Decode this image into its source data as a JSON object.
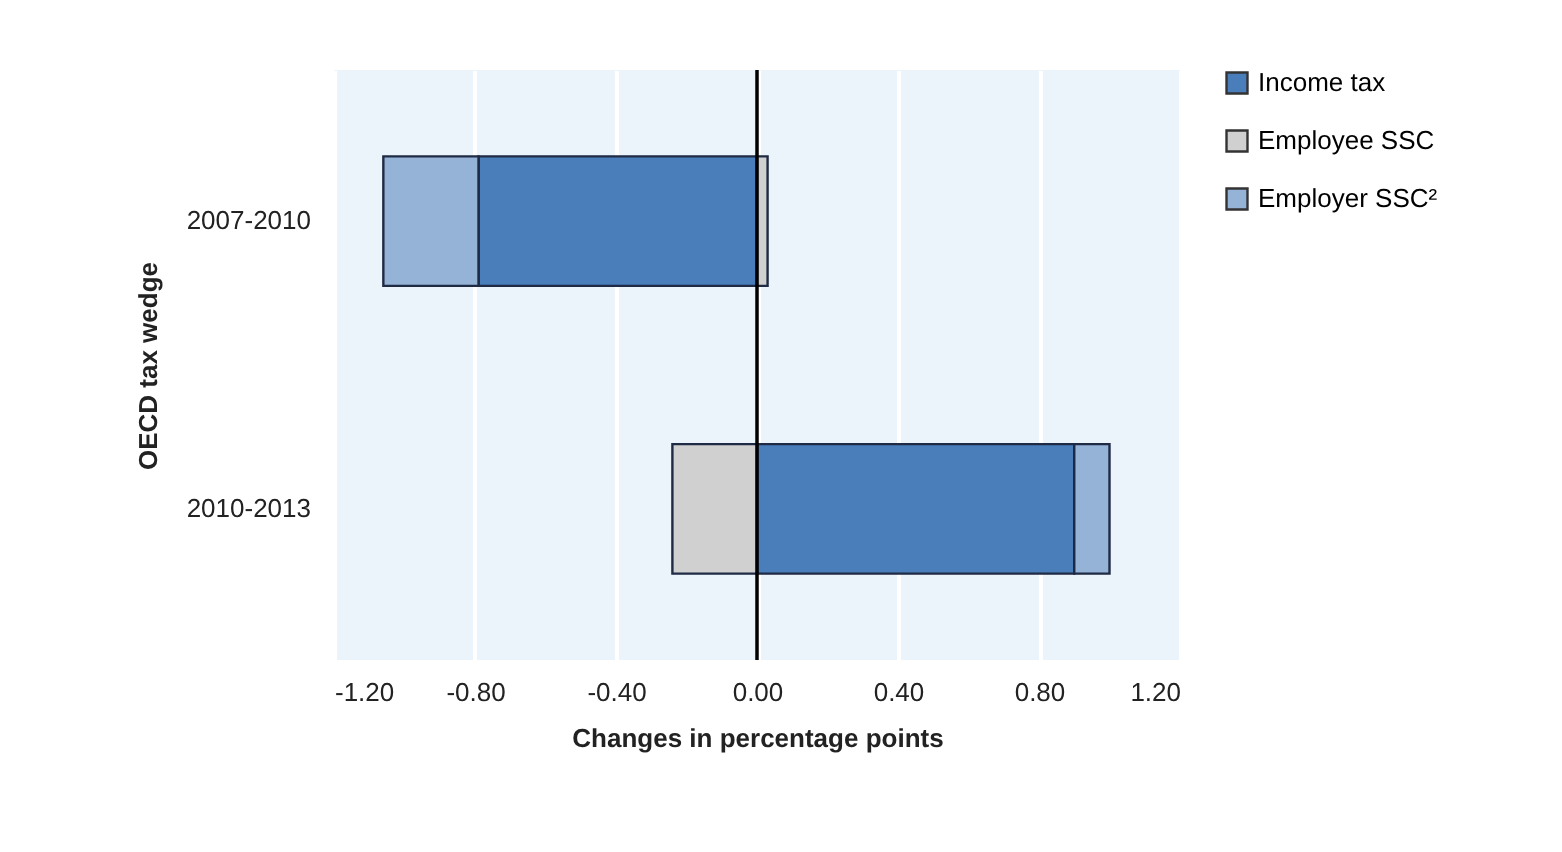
{
  "chart_data": {
    "type": "bar",
    "orientation": "horizontal",
    "stacked": true,
    "categories": [
      "2007-2010",
      "2010-2013"
    ],
    "series": [
      {
        "name": "Income tax",
        "color": "#4a7ebb",
        "values": [
          -0.79,
          0.9
        ]
      },
      {
        "name": "Employee SSC",
        "color": "#d0d0d0",
        "values": [
          0.03,
          -0.24
        ]
      },
      {
        "name": "Employer SSC²",
        "color": "#95b3d7",
        "values": [
          -0.27,
          0.1
        ]
      }
    ],
    "xlim": [
      -1.2,
      1.2
    ],
    "xticks": [
      {
        "value": -1.2,
        "label": "-1.20"
      },
      {
        "value": -0.8,
        "label": "-0.80"
      },
      {
        "value": -0.4,
        "label": "-0.40"
      },
      {
        "value": 0,
        "label": "0.00"
      },
      {
        "value": 0.4,
        "label": "0.40"
      },
      {
        "value": 0.8,
        "label": "0.80"
      },
      {
        "value": 1.2,
        "label": "1.20"
      }
    ],
    "xlabel": "Changes in percentage points",
    "ylabel": "OECD tax wedge",
    "grid": "x",
    "legend": "right"
  }
}
